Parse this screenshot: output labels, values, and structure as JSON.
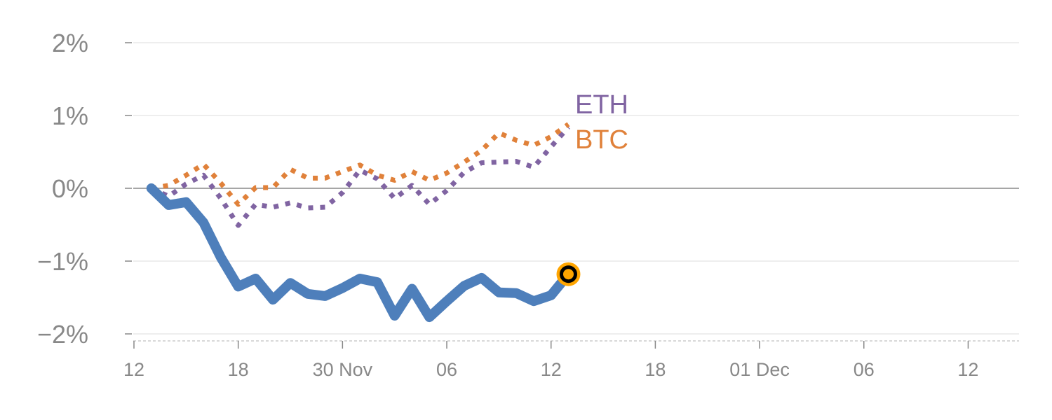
{
  "chart_data": {
    "type": "line",
    "title": "",
    "xlabel": "",
    "ylabel": "",
    "x_unit": "hours since 29 Nov 00:00",
    "x": [
      13,
      14,
      15,
      16,
      17,
      18,
      19,
      20,
      21,
      22,
      23,
      24,
      25,
      26,
      27,
      28,
      29,
      30,
      31,
      32,
      33,
      34,
      35,
      36,
      37
    ],
    "xlim": [
      11.2,
      62.3
    ],
    "ylim": [
      -2.1,
      2.1
    ],
    "xticks": [
      {
        "value": 12,
        "label": "12"
      },
      {
        "value": 18,
        "label": "18"
      },
      {
        "value": 24,
        "label": "30 Nov"
      },
      {
        "value": 30,
        "label": "06"
      },
      {
        "value": 36,
        "label": "12"
      },
      {
        "value": 42,
        "label": "18"
      },
      {
        "value": 48,
        "label": "01 Dec"
      },
      {
        "value": 54,
        "label": "06"
      },
      {
        "value": 60,
        "label": "12"
      }
    ],
    "yticks": [
      {
        "value": 2,
        "label": "2%"
      },
      {
        "value": 1,
        "label": "1%"
      },
      {
        "value": 0,
        "label": "0%"
      },
      {
        "value": -1,
        "label": "−1%"
      },
      {
        "value": -2,
        "label": "−2%"
      }
    ],
    "grid": true,
    "series": [
      {
        "name": "main",
        "label": "",
        "color": "#4e7fbb",
        "style": "solid",
        "values": [
          0,
          -0.23,
          -0.19,
          -0.47,
          -0.95,
          -1.35,
          -1.24,
          -1.53,
          -1.3,
          -1.45,
          -1.48,
          -1.37,
          -1.24,
          -1.29,
          -1.75,
          -1.38,
          -1.77,
          -1.55,
          -1.34,
          -1.23,
          -1.43,
          -1.44,
          -1.55,
          -1.47,
          -1.18
        ]
      },
      {
        "name": "BTC",
        "label": "BTC",
        "color": "#e0813a",
        "style": "dotted",
        "values": [
          0,
          0.04,
          0.18,
          0.33,
          0.07,
          -0.22,
          0.01,
          0.01,
          0.26,
          0.14,
          0.14,
          0.23,
          0.32,
          0.18,
          0.11,
          0.23,
          0.11,
          0.21,
          0.36,
          0.52,
          0.76,
          0.66,
          0.59,
          0.71,
          0.88
        ]
      },
      {
        "name": "ETH",
        "label": "ETH",
        "color": "#8064a2",
        "style": "dotted",
        "values": [
          0,
          -0.11,
          0.06,
          0.18,
          -0.14,
          -0.51,
          -0.22,
          -0.26,
          -0.2,
          -0.27,
          -0.26,
          -0.06,
          0.25,
          0.13,
          -0.14,
          0.04,
          -0.22,
          -0.03,
          0.22,
          0.35,
          0.36,
          0.37,
          0.29,
          0.57,
          0.84
        ]
      }
    ],
    "marker": {
      "series": "main",
      "fill": "#000000",
      "ring": "#ffa500"
    }
  }
}
